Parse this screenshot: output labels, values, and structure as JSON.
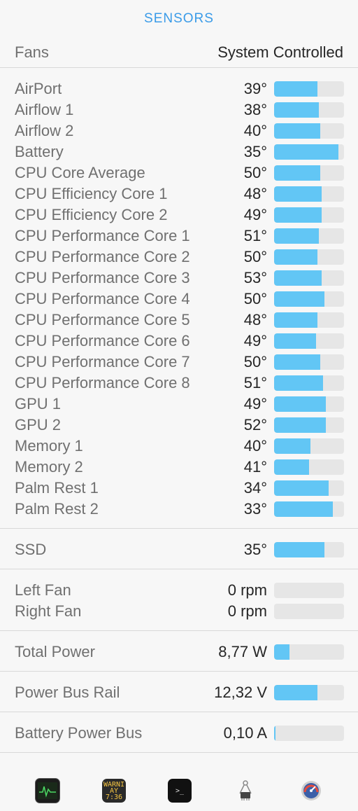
{
  "header": {
    "title": "SENSORS"
  },
  "fans": {
    "label": "Fans",
    "value": "System Controlled"
  },
  "temperatures": [
    {
      "name": "AirPort",
      "value": "39°",
      "level": 0.62
    },
    {
      "name": "Airflow 1",
      "value": "38°",
      "level": 0.64
    },
    {
      "name": "Airflow 2",
      "value": "40°",
      "level": 0.66
    },
    {
      "name": "Battery",
      "value": "35°",
      "level": 0.92
    },
    {
      "name": "CPU Core Average",
      "value": "50°",
      "level": 0.66
    },
    {
      "name": "CPU Efficiency Core 1",
      "value": "48°",
      "level": 0.68
    },
    {
      "name": "CPU Efficiency Core 2",
      "value": "49°",
      "level": 0.68
    },
    {
      "name": "CPU Performance Core 1",
      "value": "51°",
      "level": 0.64
    },
    {
      "name": "CPU Performance Core 2",
      "value": "50°",
      "level": 0.62
    },
    {
      "name": "CPU Performance Core 3",
      "value": "53°",
      "level": 0.68
    },
    {
      "name": "CPU Performance Core 4",
      "value": "50°",
      "level": 0.72
    },
    {
      "name": "CPU Performance Core 5",
      "value": "48°",
      "level": 0.62
    },
    {
      "name": "CPU Performance Core 6",
      "value": "49°",
      "level": 0.6
    },
    {
      "name": "CPU Performance Core 7",
      "value": "50°",
      "level": 0.66
    },
    {
      "name": "CPU Performance Core 8",
      "value": "51°",
      "level": 0.7
    },
    {
      "name": "GPU 1",
      "value": "49°",
      "level": 0.74
    },
    {
      "name": "GPU 2",
      "value": "52°",
      "level": 0.74
    },
    {
      "name": "Memory 1",
      "value": "40°",
      "level": 0.52
    },
    {
      "name": "Memory 2",
      "value": "41°",
      "level": 0.5
    },
    {
      "name": "Palm Rest 1",
      "value": "34°",
      "level": 0.78
    },
    {
      "name": "Palm Rest 2",
      "value": "33°",
      "level": 0.84
    }
  ],
  "ssd": [
    {
      "name": "SSD",
      "value": "35°",
      "level": 0.72
    }
  ],
  "fan_speeds": [
    {
      "name": "Left Fan",
      "value": "0 rpm",
      "level": 0
    },
    {
      "name": "Right Fan",
      "value": "0 rpm",
      "level": 0
    }
  ],
  "power": [
    {
      "name": "Total Power",
      "value": "8,77 W",
      "level": 0.22
    }
  ],
  "voltage": [
    {
      "name": "Power Bus Rail",
      "value": "12,32 V",
      "level": 0.62
    }
  ],
  "current": [
    {
      "name": "Battery Power Bus",
      "value": "0,10 A",
      "level": 0.02
    }
  ],
  "dock": {
    "console_text": "WARNI AY 7:36",
    "terminal_text": ">_"
  },
  "colors": {
    "accent": "#3a9be8",
    "bar_fill": "#62c6f5",
    "bar_track": "#e6e6e6"
  }
}
